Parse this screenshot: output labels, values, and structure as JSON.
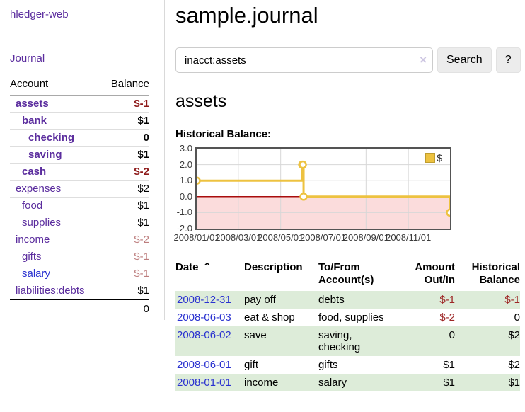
{
  "sidebar": {
    "brand": "hledger-web",
    "journal_label": "Journal",
    "accounts_table": {
      "headers": [
        "Account",
        "Balance"
      ],
      "rows": [
        {
          "account": "assets",
          "balance": "$-1",
          "level": 1,
          "bold": true,
          "negative": "strong"
        },
        {
          "account": "bank",
          "balance": "$1",
          "level": 2,
          "bold": true,
          "negative": null
        },
        {
          "account": "checking",
          "balance": "0",
          "level": 3,
          "bold": true,
          "negative": null
        },
        {
          "account": "saving",
          "balance": "$1",
          "level": 3,
          "bold": true,
          "negative": null
        },
        {
          "account": "cash",
          "balance": "$-2",
          "level": 2,
          "bold": true,
          "negative": "strong"
        },
        {
          "account": "expenses",
          "balance": "$2",
          "level": 1,
          "bold": false,
          "negative": null
        },
        {
          "account": "food",
          "balance": "$1",
          "level": 2,
          "bold": false,
          "negative": null
        },
        {
          "account": "supplies",
          "balance": "$1",
          "level": 2,
          "bold": false,
          "negative": null
        },
        {
          "account": "income",
          "balance": "$-2",
          "level": 1,
          "bold": false,
          "negative": "soft"
        },
        {
          "account": "gifts",
          "balance": "$-1",
          "level": 2,
          "bold": false,
          "negative": "soft"
        },
        {
          "account": "salary",
          "balance": "$-1",
          "level": 2,
          "bold": false,
          "negative": "soft",
          "link_blue": true
        },
        {
          "account": "liabilities:debts",
          "balance": "$1",
          "level": 1,
          "bold": false,
          "negative": null
        }
      ],
      "total": "0"
    }
  },
  "header": {
    "title": "sample.journal"
  },
  "search": {
    "value": "inacct:assets",
    "clear_icon": "×",
    "button_label": "Search",
    "help_label": "?"
  },
  "account_page": {
    "title": "assets",
    "chart_label": "Historical Balance:"
  },
  "chart_data": {
    "type": "line",
    "step": true,
    "title": "Historical Balance",
    "series": [
      {
        "name": "$",
        "color": "#edc240",
        "points": [
          [
            "2008-01-01",
            1
          ],
          [
            "2008-06-01",
            2
          ],
          [
            "2008-06-02",
            2
          ],
          [
            "2008-06-03",
            0
          ],
          [
            "2008-12-31",
            -1
          ]
        ]
      }
    ],
    "x_ticks": [
      "2008/01/01",
      "2008/03/01",
      "2008/05/01",
      "2008/07/01",
      "2008/09/01",
      "2008/11/01"
    ],
    "y_ticks": [
      3.0,
      2.0,
      1.0,
      0.0,
      -1.0,
      -2.0
    ],
    "xlim": [
      "2008-01-01",
      "2008-12-31"
    ],
    "ylim": [
      -2,
      3
    ],
    "grid": true,
    "legend_position": "top-right",
    "negative_region_color": "#fbdcdc",
    "zero_line_color": "#a80d0d",
    "gridline_color": "#d7d7d7"
  },
  "register_table": {
    "columns": [
      {
        "key": "date",
        "label": "Date",
        "lines": [
          "Date"
        ],
        "align": "left",
        "sort_icon": "⌃",
        "sortable": true
      },
      {
        "key": "description",
        "label": "Description",
        "lines": [
          "Description"
        ],
        "align": "left"
      },
      {
        "key": "accounts",
        "label": "To/From Account(s)",
        "lines": [
          "To/From",
          "Account(s)"
        ],
        "align": "left"
      },
      {
        "key": "amount",
        "label": "Amount Out/In",
        "lines": [
          "Amount",
          "Out/In"
        ],
        "align": "right"
      },
      {
        "key": "balance",
        "label": "Historical Balance",
        "lines": [
          "Historical",
          "Balance"
        ],
        "align": "right"
      }
    ],
    "rows": [
      {
        "date": "2008-12-31",
        "description": "pay off",
        "accounts": [
          "debts"
        ],
        "amount": "$-1",
        "amount_negative": true,
        "balance": "$-1",
        "balance_negative": true
      },
      {
        "date": "2008-06-03",
        "description": "eat & shop",
        "accounts": [
          "food, supplies"
        ],
        "amount": "$-2",
        "amount_negative": true,
        "balance": "0",
        "balance_negative": false
      },
      {
        "date": "2008-06-02",
        "description": "save",
        "accounts": [
          "saving,",
          "checking"
        ],
        "amount": "0",
        "amount_negative": false,
        "balance": "$2",
        "balance_negative": false
      },
      {
        "date": "2008-06-01",
        "description": "gift",
        "accounts": [
          "gifts"
        ],
        "amount": "$1",
        "amount_negative": false,
        "balance": "$2",
        "balance_negative": false
      },
      {
        "date": "2008-01-01",
        "description": "income",
        "accounts": [
          "salary"
        ],
        "amount": "$1",
        "amount_negative": false,
        "balance": "$1",
        "balance_negative": false
      }
    ]
  },
  "colors": {
    "link_purple": "#5b2d9e",
    "link_blue": "#2a32d0",
    "negative_strong": "#8e1b1b",
    "negative_soft": "#bd7e7e",
    "negative_table": "#9e2626",
    "row_stripe_green": "#ddecd9",
    "chart_line_yellow": "#edc240",
    "chart_negative_fill": "#fbdcdc",
    "chart_zero_line": "#a80d0d",
    "button_bg": "#ececec"
  }
}
